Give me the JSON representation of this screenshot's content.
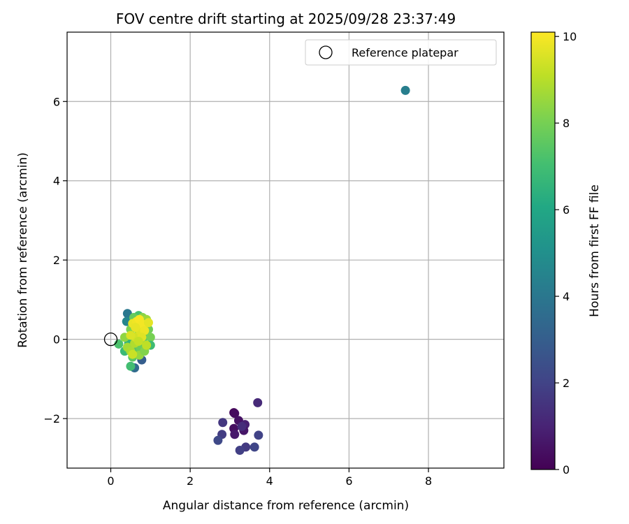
{
  "chart_data": {
    "type": "scatter",
    "title": "FOV centre drift starting at 2025/09/28 23:37:49",
    "xlabel": "Angular distance from reference (arcmin)",
    "ylabel": "Rotation from reference (arcmin)",
    "xlim": [
      -1.1,
      9.9
    ],
    "ylim": [
      -3.25,
      7.75
    ],
    "xticks": [
      0,
      2,
      4,
      6,
      8
    ],
    "yticks": [
      -2,
      0,
      2,
      4,
      6
    ],
    "grid": true,
    "legend_position": "top-right",
    "reference": {
      "label": "Reference platepar",
      "x": 0,
      "y": 0
    },
    "colorbar": {
      "label": "Hours from first FF file",
      "range": [
        0,
        10.1
      ],
      "ticks": [
        0,
        2,
        4,
        6,
        8,
        10
      ],
      "colormap": "viridis"
    },
    "points": [
      {
        "x": 3.1,
        "y": -1.85,
        "h": 0.1
      },
      {
        "x": 3.12,
        "y": -1.87,
        "h": 0.3
      },
      {
        "x": 3.22,
        "y": -2.05,
        "h": 0.5
      },
      {
        "x": 3.38,
        "y": -2.15,
        "h": 0.9
      },
      {
        "x": 3.1,
        "y": -2.25,
        "h": 0.4
      },
      {
        "x": 3.35,
        "y": -2.3,
        "h": 0.6
      },
      {
        "x": 3.12,
        "y": -2.4,
        "h": 0.7
      },
      {
        "x": 3.7,
        "y": -1.6,
        "h": 1.2
      },
      {
        "x": 2.82,
        "y": -2.1,
        "h": 1.6
      },
      {
        "x": 2.8,
        "y": -2.4,
        "h": 1.8
      },
      {
        "x": 2.7,
        "y": -2.55,
        "h": 2.2
      },
      {
        "x": 3.72,
        "y": -2.42,
        "h": 2.0
      },
      {
        "x": 3.4,
        "y": -2.72,
        "h": 1.7
      },
      {
        "x": 3.25,
        "y": -2.8,
        "h": 1.9
      },
      {
        "x": 3.62,
        "y": -2.72,
        "h": 2.1
      },
      {
        "x": 3.3,
        "y": -2.2,
        "h": 1.3
      },
      {
        "x": 7.42,
        "y": 6.28,
        "h": 4.3
      },
      {
        "x": 0.42,
        "y": 0.65,
        "h": 4.0
      },
      {
        "x": 0.4,
        "y": 0.45,
        "h": 4.6
      },
      {
        "x": 0.6,
        "y": -0.72,
        "h": 3.5
      },
      {
        "x": 0.78,
        "y": -0.52,
        "h": 3.0
      },
      {
        "x": 0.6,
        "y": 0.3,
        "h": 5.5
      },
      {
        "x": 0.7,
        "y": -0.2,
        "h": 5.0
      },
      {
        "x": 0.2,
        "y": -0.12,
        "h": 7.2
      },
      {
        "x": 0.5,
        "y": -0.68,
        "h": 7.0
      },
      {
        "x": 0.35,
        "y": -0.3,
        "h": 6.8
      },
      {
        "x": 0.45,
        "y": -0.1,
        "h": 6.5
      },
      {
        "x": 0.55,
        "y": -0.45,
        "h": 7.5
      },
      {
        "x": 0.65,
        "y": -0.3,
        "h": 7.4
      },
      {
        "x": 0.75,
        "y": -0.25,
        "h": 7.8
      },
      {
        "x": 0.8,
        "y": -0.05,
        "h": 7.6
      },
      {
        "x": 0.9,
        "y": 0.1,
        "h": 7.3
      },
      {
        "x": 0.95,
        "y": 0.25,
        "h": 7.9
      },
      {
        "x": 1.0,
        "y": 0.05,
        "h": 8.0
      },
      {
        "x": 1.0,
        "y": -0.15,
        "h": 6.9
      },
      {
        "x": 0.7,
        "y": 0.6,
        "h": 7.1
      },
      {
        "x": 0.58,
        "y": 0.55,
        "h": 7.7
      },
      {
        "x": 0.8,
        "y": 0.55,
        "h": 8.3
      },
      {
        "x": 0.9,
        "y": 0.5,
        "h": 8.6
      },
      {
        "x": 0.5,
        "y": 0.25,
        "h": 8.1
      },
      {
        "x": 0.35,
        "y": 0.05,
        "h": 8.4
      },
      {
        "x": 0.42,
        "y": -0.2,
        "h": 8.7
      },
      {
        "x": 0.5,
        "y": -0.3,
        "h": 8.8
      },
      {
        "x": 0.6,
        "y": -0.1,
        "h": 8.9
      },
      {
        "x": 0.68,
        "y": 0.1,
        "h": 9.0
      },
      {
        "x": 0.72,
        "y": -0.4,
        "h": 8.5
      },
      {
        "x": 0.85,
        "y": -0.3,
        "h": 8.2
      },
      {
        "x": 0.9,
        "y": -0.15,
        "h": 9.1
      },
      {
        "x": 0.55,
        "y": -0.38,
        "h": 9.3
      },
      {
        "x": 0.62,
        "y": 0.05,
        "h": 9.4
      },
      {
        "x": 0.75,
        "y": 0.2,
        "h": 9.6
      },
      {
        "x": 0.55,
        "y": 0.4,
        "h": 9.8
      },
      {
        "x": 0.65,
        "y": 0.45,
        "h": 9.9
      },
      {
        "x": 0.72,
        "y": 0.5,
        "h": 10.0
      },
      {
        "x": 0.8,
        "y": 0.38,
        "h": 9.95
      },
      {
        "x": 0.85,
        "y": 0.22,
        "h": 9.85
      },
      {
        "x": 0.95,
        "y": 0.42,
        "h": 9.7
      },
      {
        "x": 0.62,
        "y": 0.3,
        "h": 9.75
      },
      {
        "x": 0.78,
        "y": 0.05,
        "h": 9.65
      },
      {
        "x": 0.5,
        "y": 0.1,
        "h": 9.55
      },
      {
        "x": 0.7,
        "y": -0.05,
        "h": 9.2
      }
    ]
  }
}
